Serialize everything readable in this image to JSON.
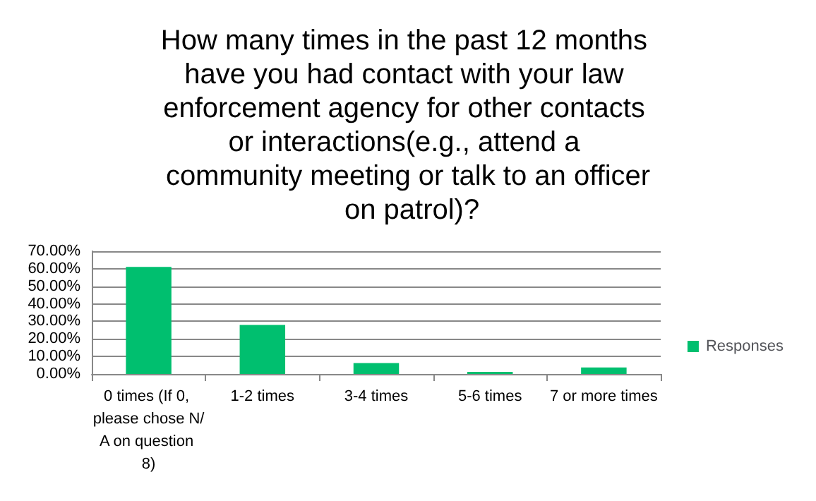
{
  "chart_data": {
    "type": "bar",
    "title": "How many times in the past 12 months have you had contact with your law enforcement agency for other contacts or interactions(e.g., attend a community meeting or talk to an officer on patrol)?",
    "categories": [
      "0 times (If 0, please chose N/A on question 8)",
      "1-2 times",
      "3-4 times",
      "5-6 times",
      "7 or more times"
    ],
    "series": [
      {
        "name": "Responses",
        "color": "#00bf6f",
        "values": [
          61,
          28,
          6.2,
          1.2,
          3.7
        ]
      }
    ],
    "ylim": [
      0,
      70
    ],
    "yticks": [
      {
        "value": 0,
        "label": "0.00%"
      },
      {
        "value": 10,
        "label": "10.00%"
      },
      {
        "value": 20,
        "label": "20.00%"
      },
      {
        "value": 30,
        "label": "30.00%"
      },
      {
        "value": 40,
        "label": "40.00%"
      },
      {
        "value": 50,
        "label": "50.00%"
      },
      {
        "value": 60,
        "label": "60.00%"
      },
      {
        "value": 70,
        "label": "70.00%"
      }
    ],
    "grid": "y",
    "legend": "right"
  }
}
